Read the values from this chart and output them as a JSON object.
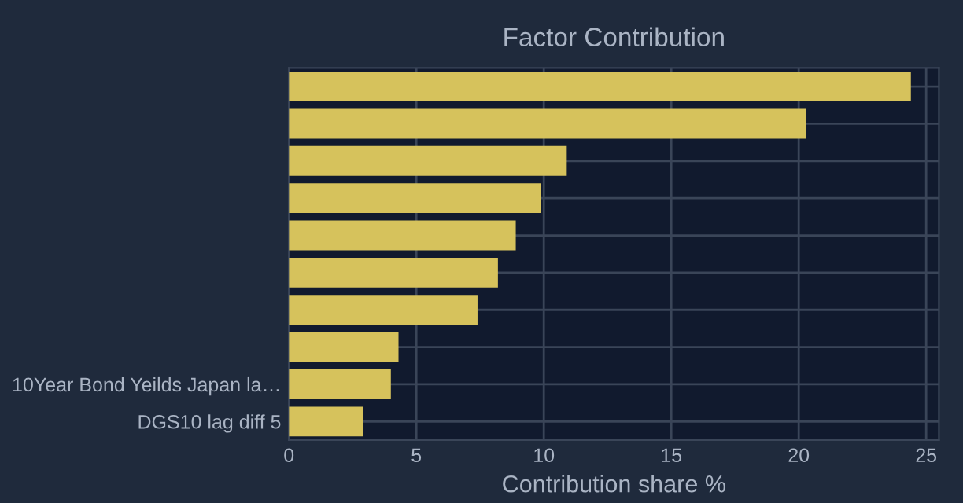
{
  "chart_data": {
    "type": "bar",
    "orientation": "horizontal",
    "title": "Factor Contribution",
    "xlabel": "Contribution share %",
    "categories": [
      null,
      null,
      null,
      null,
      null,
      null,
      null,
      null,
      "10Year Bond Yeilds Japan la…",
      "DGS10 lag diff 5"
    ],
    "values": [
      24.4,
      20.3,
      10.9,
      9.9,
      8.9,
      8.2,
      7.4,
      4.3,
      4.0,
      2.9
    ],
    "color": "#d6c25c",
    "xlim": [
      0,
      25.5
    ],
    "xticks": [
      0,
      5,
      10,
      15,
      20,
      25
    ],
    "grid": true
  }
}
